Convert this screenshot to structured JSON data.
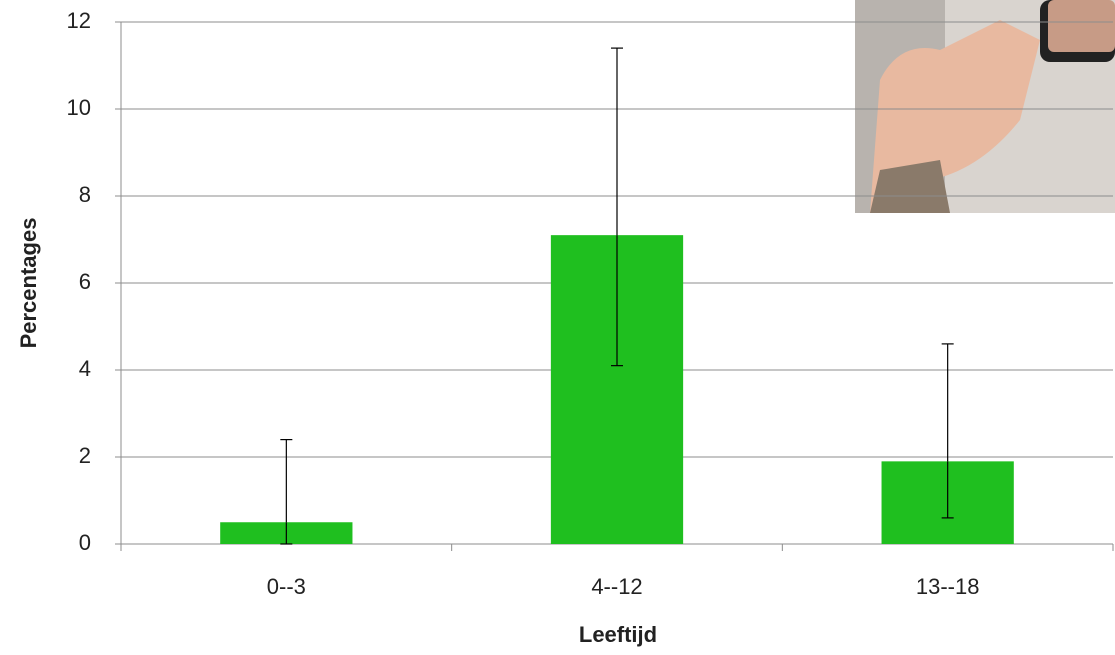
{
  "chart_data": {
    "type": "bar",
    "categories": [
      "0--3",
      "4--12",
      "13--18"
    ],
    "values": [
      0.5,
      7.1,
      1.9
    ],
    "error_minus": [
      0.5,
      3.0,
      1.3
    ],
    "error_plus": [
      1.9,
      4.3,
      2.7
    ],
    "color": "#1fbf1f",
    "x_label": "Leeftijd",
    "y_label": "Percentages",
    "ylim": [
      0,
      12
    ],
    "yticks": [
      0,
      2,
      4,
      6,
      8,
      10,
      12
    ],
    "grid": true
  }
}
